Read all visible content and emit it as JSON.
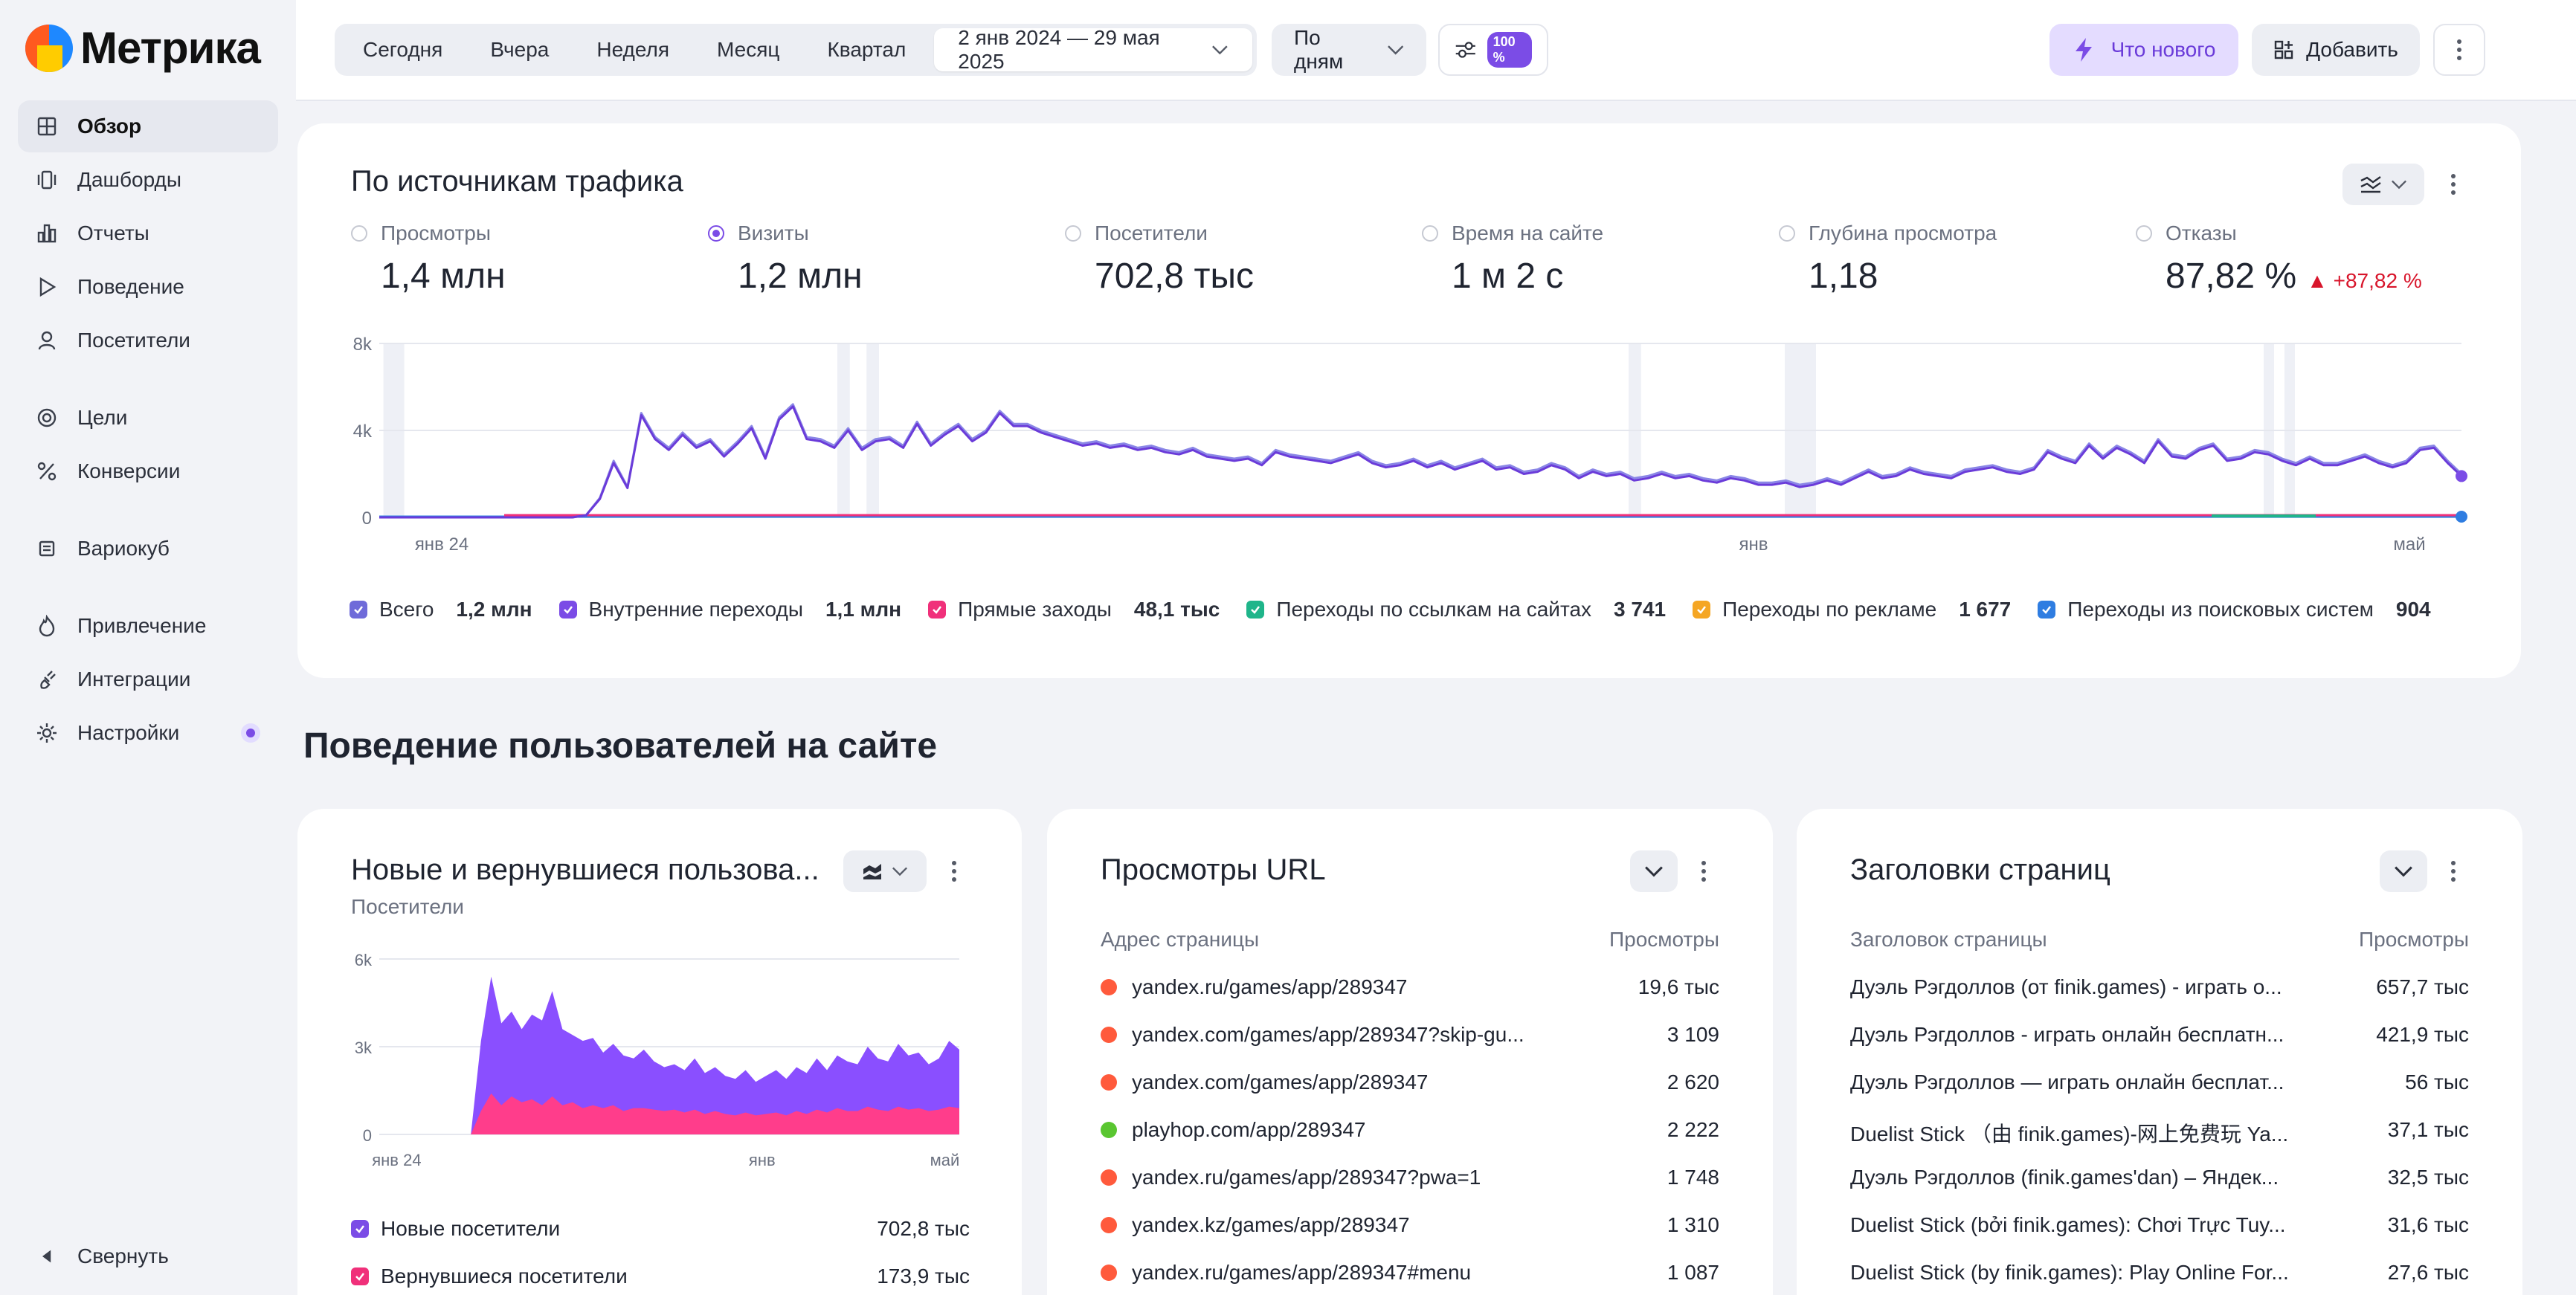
{
  "app": {
    "name": "Метрика"
  },
  "sidebar": {
    "items": [
      {
        "label": "Обзор",
        "icon": "grid-icon",
        "active": true
      },
      {
        "label": "Дашборды",
        "icon": "dashboards-icon"
      },
      {
        "label": "Отчеты",
        "icon": "bar-chart-icon"
      },
      {
        "label": "Поведение",
        "icon": "play-icon"
      },
      {
        "label": "Посетители",
        "icon": "user-icon"
      },
      {
        "label": "Цели",
        "icon": "target-icon"
      },
      {
        "label": "Конверсии",
        "icon": "percent-icon"
      },
      {
        "label": "Вариокуб",
        "icon": "cube-icon"
      },
      {
        "label": "Привлечение",
        "icon": "flame-icon"
      },
      {
        "label": "Интеграции",
        "icon": "plug-icon"
      },
      {
        "label": "Настройки",
        "icon": "gear-icon"
      }
    ],
    "collapse_label": "Свернуть"
  },
  "toolbar": {
    "periods": [
      "Сегодня",
      "Вчера",
      "Неделя",
      "Месяц",
      "Квартал"
    ],
    "date_range": "2 янв 2024 — 29 мая 2025",
    "grouping": "По дням",
    "sampling": "100 %",
    "whats_new": "Что нового",
    "add": "Добавить"
  },
  "traffic": {
    "title": "По источникам трафика",
    "metrics": [
      {
        "label": "Просмотры",
        "value": "1,4 млн",
        "selected": false
      },
      {
        "label": "Визиты",
        "value": "1,2 млн",
        "selected": true
      },
      {
        "label": "Посетители",
        "value": "702,8 тыс",
        "selected": false
      },
      {
        "label": "Время на сайте",
        "value": "1 м 2 с",
        "selected": false
      },
      {
        "label": "Глубина просмотра",
        "value": "1,18",
        "selected": false
      },
      {
        "label": "Отказы",
        "value": "87,82 %",
        "delta": "▲ +87,82 %",
        "selected": false
      }
    ],
    "legend": [
      {
        "label": "Всего",
        "value": "1,2 млн",
        "color": "#6f6bd9"
      },
      {
        "label": "Внутренние переходы",
        "value": "1,1 млн",
        "color": "#7b4ce6"
      },
      {
        "label": "Прямые заходы",
        "value": "48,1 тыс",
        "color": "#f0307a"
      },
      {
        "label": "Переходы по ссылкам на сайтах",
        "value": "3 741",
        "color": "#1fb58a"
      },
      {
        "label": "Переходы по рекламе",
        "value": "1 677",
        "color": "#f5a623"
      },
      {
        "label": "Переходы из поисковых систем",
        "value": "904",
        "color": "#2f7de1"
      }
    ]
  },
  "section": {
    "title": "Поведение пользователей на сайте"
  },
  "users_card": {
    "title": "Новые и вернувшиеся пользова...",
    "subtitle": "Посетители",
    "legend": [
      {
        "label": "Новые посетители",
        "value": "702,8 тыс",
        "color": "#7b4ce6"
      },
      {
        "label": "Вернувшиеся посетители",
        "value": "173,9 тыс",
        "color": "#f0307a"
      }
    ]
  },
  "url_card": {
    "title": "Просмотры URL",
    "col1": "Адрес страницы",
    "col2": "Просмотры",
    "rows": [
      {
        "url": "yandex.ru/games/app/289347",
        "views": "19,6 тыс",
        "favicon": "yandex-icon",
        "color": "#ff5a3c"
      },
      {
        "url": "yandex.com/games/app/289347?skip-gu...",
        "views": "3 109",
        "favicon": "yandex-icon",
        "color": "#ff5a3c"
      },
      {
        "url": "yandex.com/games/app/289347",
        "views": "2 620",
        "favicon": "yandex-icon",
        "color": "#ff5a3c"
      },
      {
        "url": "playhop.com/app/289347",
        "views": "2 222",
        "favicon": "playhop-icon",
        "color": "#5ac631"
      },
      {
        "url": "yandex.ru/games/app/289347?pwa=1",
        "views": "1 748",
        "favicon": "yandex-icon",
        "color": "#ff5a3c"
      },
      {
        "url": "yandex.kz/games/app/289347",
        "views": "1 310",
        "favicon": "yandex-icon",
        "color": "#ff5a3c"
      },
      {
        "url": "yandex.ru/games/app/289347#menu",
        "views": "1 087",
        "favicon": "yandex-icon",
        "color": "#ff5a3c"
      }
    ]
  },
  "titles_card": {
    "title": "Заголовки страниц",
    "col1": "Заголовок страницы",
    "col2": "Просмотры",
    "rows": [
      {
        "title": "Дуэль Рэгдоллов (от finik.games) - играть о...",
        "views": "657,7 тыс"
      },
      {
        "title": "Дуэль Рэгдоллов - играть онлайн бесплатн...",
        "views": "421,9 тыс"
      },
      {
        "title": "Дуэль Рэгдоллов — играть онлайн бесплат...",
        "views": "56 тыс"
      },
      {
        "title": "Duelist Stick （由 finik.games)-网上免费玩 Ya...",
        "views": "37,1 тыс"
      },
      {
        "title": "Дуэль Рэгдоллов (finik.games'dan) – Яндек...",
        "views": "32,5 тыс"
      },
      {
        "title": "Duelist Stick (bởi finik.games): Chơi Trực Tuy...",
        "views": "31,6 тыс"
      },
      {
        "title": "Duelist Stick (by finik.games): Play Online For...",
        "views": "27,6 тыс"
      }
    ]
  },
  "chart_data": [
    {
      "type": "line",
      "ylim": [
        0,
        8000
      ],
      "yticks": [
        "0",
        "4k",
        "8k"
      ],
      "xticks": [
        "янв 24",
        "янв",
        "май"
      ],
      "series": [
        {
          "name": "Всего",
          "values": [
            0,
            0,
            0,
            0,
            0,
            0,
            0,
            0,
            0,
            0,
            0,
            0,
            0,
            0,
            0,
            100,
            900,
            2600,
            1400,
            4800,
            3700,
            3200,
            3900,
            3300,
            3600,
            2900,
            3500,
            4200,
            2800,
            4600,
            5200,
            3700,
            3600,
            3300,
            4100,
            3200,
            3600,
            3700,
            3300,
            4400,
            3400,
            3900,
            4300,
            3600,
            4000,
            4900,
            4300,
            4300,
            4000,
            3800,
            3600,
            3400,
            3500,
            3300,
            3400,
            3200,
            3300,
            3100,
            3000,
            3200,
            2900,
            2800,
            2700,
            2800,
            2500,
            3100,
            2900,
            2800,
            2700,
            2600,
            2800,
            3000,
            2600,
            2400,
            2500,
            2700,
            2400,
            2600,
            2300,
            2500,
            2700,
            2300,
            2400,
            2100,
            2200,
            2500,
            2300,
            1900,
            2200,
            2000,
            2100,
            1800,
            1900,
            2100,
            1900,
            2000,
            1800,
            1700,
            1900,
            1800,
            1600,
            1600,
            1700,
            1500,
            1600,
            1800,
            1600,
            1900,
            2200,
            1900,
            2000,
            2300,
            2100,
            2000,
            1900,
            2200,
            2300,
            2400,
            2200,
            2100,
            2300,
            3100,
            2800,
            2600,
            3400,
            2800,
            3300,
            3000,
            2600,
            3600,
            2900,
            2800,
            3200,
            3400,
            2700,
            2800,
            3100,
            3000,
            2700,
            2500,
            2800,
            2500,
            2500,
            2700,
            2900,
            2600,
            2400,
            2600,
            3200,
            3300,
            2600,
            2000
          ]
        },
        {
          "name": "Внутренние переходы",
          "values": [
            0,
            0,
            0,
            0,
            0,
            0,
            0,
            0,
            0,
            0,
            0,
            0,
            0,
            0,
            0,
            100,
            850,
            2500,
            1350,
            4700,
            3600,
            3100,
            3800,
            3200,
            3500,
            2800,
            3400,
            4100,
            2700,
            4500,
            5100,
            3600,
            3500,
            3200,
            4000,
            3100,
            3500,
            3600,
            3200,
            4300,
            3300,
            3800,
            4200,
            3500,
            3900,
            4800,
            4200,
            4200,
            3900,
            3700,
            3500,
            3300,
            3400,
            3200,
            3300,
            3100,
            3200,
            3000,
            2900,
            3100,
            2800,
            2700,
            2600,
            2700,
            2400,
            3000,
            2800,
            2700,
            2600,
            2500,
            2700,
            2900,
            2500,
            2300,
            2400,
            2600,
            2300,
            2500,
            2200,
            2400,
            2600,
            2200,
            2300,
            2000,
            2100,
            2400,
            2200,
            1800,
            2100,
            1900,
            2000,
            1700,
            1800,
            2000,
            1800,
            1900,
            1700,
            1600,
            1800,
            1700,
            1500,
            1500,
            1600,
            1400,
            1500,
            1700,
            1500,
            1800,
            2100,
            1800,
            1900,
            2200,
            2000,
            1900,
            1800,
            2100,
            2200,
            2300,
            2100,
            2000,
            2200,
            3000,
            2700,
            2500,
            3300,
            2700,
            3200,
            2900,
            2500,
            3500,
            2800,
            2700,
            3100,
            3300,
            2600,
            2700,
            3000,
            2900,
            2600,
            2400,
            2700,
            2400,
            2400,
            2600,
            2800,
            2500,
            2300,
            2500,
            3100,
            3200,
            2500,
            1900
          ]
        }
      ]
    },
    {
      "type": "area",
      "ylim": [
        0,
        6000
      ],
      "yticks": [
        "0",
        "3k",
        "6k"
      ],
      "xticks": [
        "янв 24",
        "янв",
        "май"
      ],
      "series": [
        {
          "name": "Новые посетители",
          "values": [
            0,
            0,
            0,
            0,
            0,
            0,
            0,
            0,
            0,
            0,
            3200,
            5400,
            3800,
            4200,
            3600,
            4100,
            3900,
            4900,
            3600,
            3400,
            3200,
            3300,
            2800,
            3100,
            2700,
            2600,
            2900,
            2500,
            2300,
            2400,
            2200,
            2600,
            2100,
            2300,
            2000,
            1900,
            2200,
            1800,
            2000,
            2200,
            1900,
            2300,
            2100,
            2600,
            2200,
            2700,
            2500,
            2400,
            3000,
            2600,
            2500,
            3100,
            2700,
            2800,
            2400,
            2600,
            3200,
            2900
          ]
        },
        {
          "name": "Вернувшиеся посетители",
          "values": [
            0,
            0,
            0,
            0,
            0,
            0,
            0,
            0,
            0,
            0,
            800,
            1400,
            1000,
            1300,
            1100,
            1200,
            1000,
            1300,
            1000,
            1100,
            900,
            1000,
            900,
            1000,
            800,
            900,
            900,
            850,
            800,
            850,
            750,
            850,
            700,
            800,
            700,
            650,
            750,
            650,
            700,
            750,
            650,
            800,
            700,
            850,
            750,
            900,
            800,
            800,
            950,
            850,
            800,
            950,
            850,
            900,
            800,
            850,
            950,
            900
          ]
        }
      ]
    }
  ]
}
